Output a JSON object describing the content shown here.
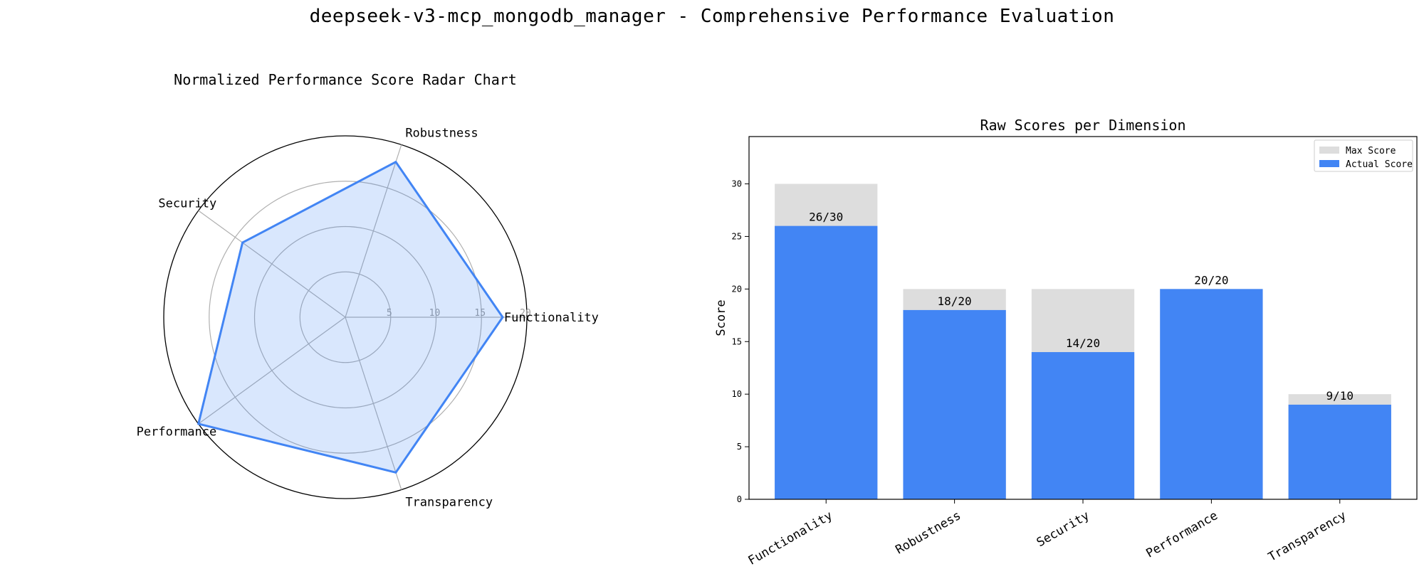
{
  "figure": {
    "suptitle": "deepseek-v3-mcp_mongodb_manager - Comprehensive Performance Evaluation"
  },
  "chart_data": [
    {
      "type": "radar",
      "title": "Normalized Performance Score Radar Chart",
      "categories": [
        "Functionality",
        "Robustness",
        "Security",
        "Performance",
        "Transparency"
      ],
      "values": [
        17.33,
        18,
        14,
        20,
        18
      ],
      "rlim": [
        0,
        20
      ],
      "rticks": [
        5,
        10,
        15,
        20
      ],
      "grid": true,
      "colors": {
        "line": "#4285f4",
        "fill": "#4285f4"
      }
    },
    {
      "type": "bar",
      "title": "Raw Scores per Dimension",
      "categories": [
        "Functionality",
        "Robustness",
        "Security",
        "Performance",
        "Transparency"
      ],
      "series": [
        {
          "name": "Max Score",
          "values": [
            30,
            20,
            20,
            20,
            10
          ],
          "color": "#dddddd"
        },
        {
          "name": "Actual Score",
          "values": [
            26,
            18,
            14,
            20,
            9
          ],
          "color": "#4285f4"
        }
      ],
      "data_labels": [
        "26/30",
        "18/20",
        "14/20",
        "20/20",
        "9/10"
      ],
      "xlabel": "",
      "ylabel": "Score",
      "ylim": [
        0,
        34.5
      ],
      "yticks": [
        0,
        5,
        10,
        15,
        20,
        25,
        30
      ],
      "legend": "top-right",
      "grid": false
    }
  ]
}
